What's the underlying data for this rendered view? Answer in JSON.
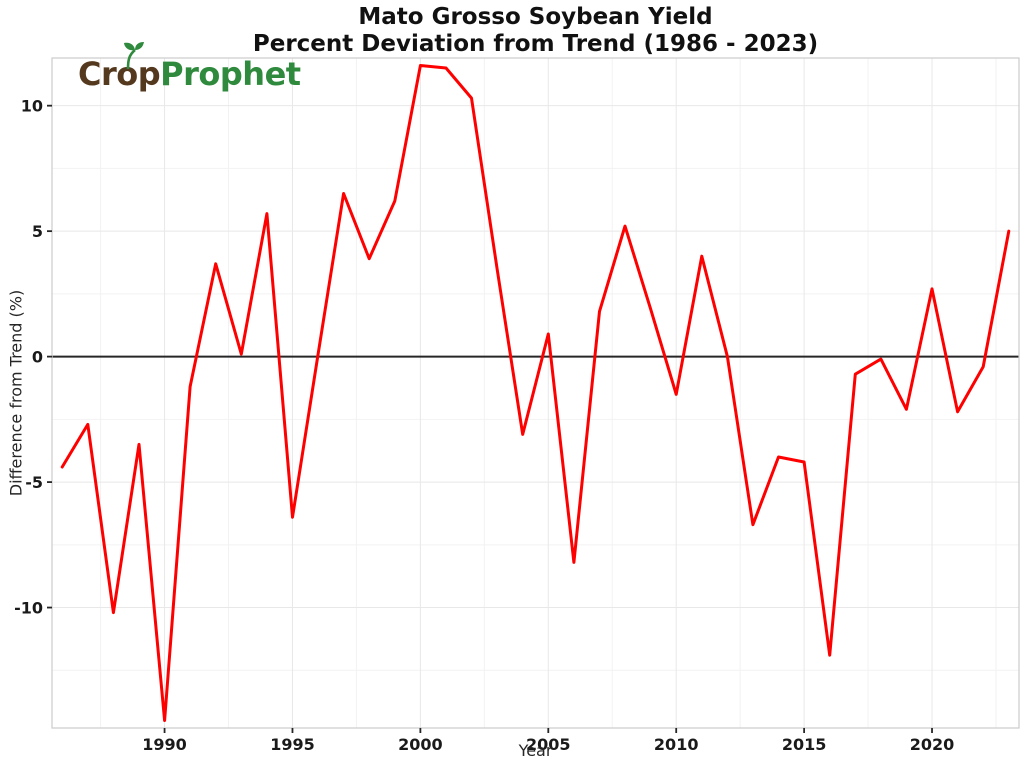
{
  "title": {
    "line1": "Mato Grosso Soybean Yield",
    "line2": "Percent Deviation from Trend (1986 - 2023)"
  },
  "logo": {
    "crop": "Crop",
    "prophet": "Prophet",
    "crop_color": "#54391E",
    "prophet_color": "#2F8A3D",
    "sprout_color": "#2F8A3D"
  },
  "chart_data": {
    "type": "line",
    "title": "Mato Grosso Soybean Yield - Percent Deviation from Trend (1986 - 2023)",
    "xlabel": "Year",
    "ylabel": "Difference from Trend (%)",
    "series": [
      {
        "name": "Percent deviation from trend",
        "color": "#ff0000",
        "x": [
          1986,
          1987,
          1988,
          1989,
          1990,
          1991,
          1992,
          1993,
          1994,
          1995,
          1996,
          1997,
          1998,
          1999,
          2000,
          2001,
          2002,
          2003,
          2004,
          2005,
          2006,
          2007,
          2008,
          2009,
          2010,
          2011,
          2012,
          2013,
          2014,
          2015,
          2016,
          2017,
          2018,
          2019,
          2020,
          2021,
          2022,
          2023
        ],
        "values": [
          -4.4,
          -2.7,
          -10.2,
          -3.5,
          -14.5,
          -1.2,
          3.7,
          0.1,
          5.7,
          -6.4,
          0.1,
          6.5,
          3.9,
          6.2,
          11.6,
          11.5,
          10.3,
          3.5,
          -3.1,
          0.9,
          -8.2,
          1.8,
          5.2,
          1.9,
          -1.5,
          4.0,
          0.0,
          -6.7,
          -4.0,
          -4.2,
          -11.9,
          -0.7,
          -0.1,
          -2.1,
          2.7,
          -2.2,
          -0.4,
          5.0
        ]
      }
    ],
    "xlim": [
      1985.6,
      2023.4
    ],
    "ylim": [
      -14.8,
      11.9
    ],
    "xticks": [
      1990,
      1995,
      2000,
      2005,
      2010,
      2015,
      2020
    ],
    "yticks": [
      -10,
      -5,
      0,
      5,
      10
    ],
    "xticks_minor": [
      1987.5,
      1992.5,
      1997.5,
      2002.5,
      2007.5,
      2012.5,
      2017.5,
      2022.5
    ],
    "yticks_minor": [
      -12.5,
      -7.5,
      -2.5,
      2.5,
      7.5
    ],
    "grid": true,
    "zero_line": true,
    "legend_position": "none",
    "colors": {
      "grid_major": "#e8e8e8",
      "grid_minor": "#f2f2f2",
      "spine": "#cccccc",
      "zero_line": "#262626",
      "tick": "#262626",
      "tick_label": "#1a1a1a"
    }
  }
}
